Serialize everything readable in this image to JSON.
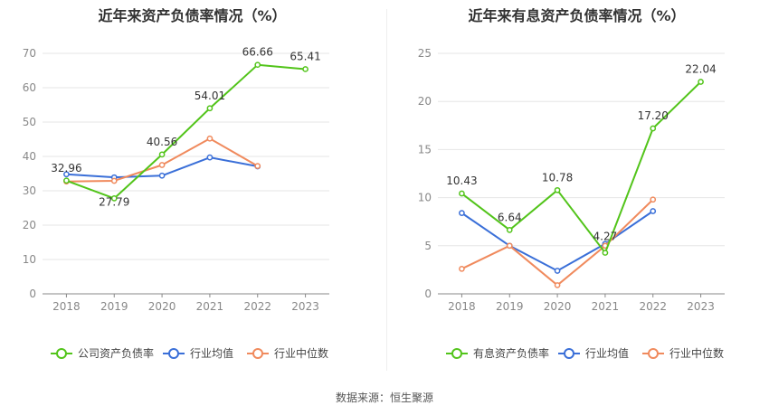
{
  "chart_data": [
    {
      "type": "line",
      "title": "近年来资产负债率情况（%）",
      "categories": [
        "2018",
        "2019",
        "2020",
        "2021",
        "2022",
        "2023"
      ],
      "ylim": [
        0,
        70
      ],
      "yticks": [
        "0",
        "10",
        "20",
        "30",
        "40",
        "50",
        "60",
        "70"
      ],
      "grid": true,
      "legend_position": "bottom",
      "series": [
        {
          "name": "公司资产负债率",
          "color": "#52c41a",
          "values": [
            32.96,
            27.79,
            40.56,
            54.01,
            66.66,
            65.41
          ],
          "labels": [
            "32.96",
            "27.79",
            "40.56",
            "54.01",
            "66.66",
            "65.41"
          ]
        },
        {
          "name": "行业均值",
          "color": "#3a6fd8",
          "values": [
            34.8,
            33.9,
            34.4,
            39.7,
            37.1,
            null
          ]
        },
        {
          "name": "行业中位数",
          "color": "#f08a5d",
          "values": [
            32.7,
            32.9,
            37.5,
            45.2,
            37.2,
            null
          ]
        }
      ]
    },
    {
      "type": "line",
      "title": "近年来有息资产负债率情况（%）",
      "categories": [
        "2018",
        "2019",
        "2020",
        "2021",
        "2022",
        "2023"
      ],
      "ylim": [
        0,
        25
      ],
      "yticks": [
        "0",
        "5",
        "10",
        "15",
        "20",
        "25"
      ],
      "grid": true,
      "legend_position": "bottom",
      "series": [
        {
          "name": "有息资产负债率",
          "color": "#52c41a",
          "values": [
            10.43,
            6.64,
            10.78,
            4.27,
            17.2,
            22.04
          ],
          "labels": [
            "10.43",
            "6.64",
            "10.78",
            "4.27",
            "17.20",
            "22.04"
          ]
        },
        {
          "name": "行业均值",
          "color": "#3a6fd8",
          "values": [
            8.4,
            5.0,
            2.4,
            5.2,
            8.6,
            null
          ]
        },
        {
          "name": "行业中位数",
          "color": "#f08a5d",
          "values": [
            2.6,
            5.0,
            0.9,
            5.0,
            9.8,
            null
          ]
        }
      ]
    }
  ],
  "source": "数据来源：恒生聚源"
}
